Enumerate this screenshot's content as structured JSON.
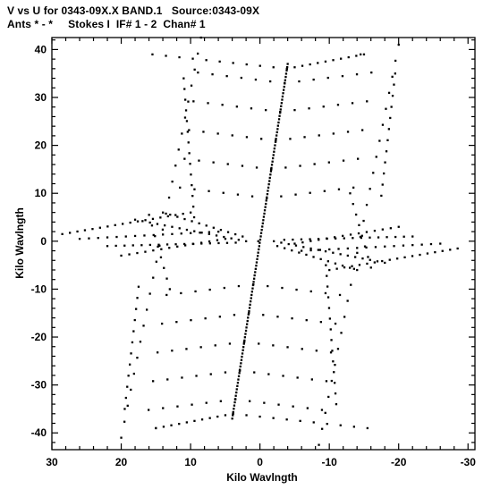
{
  "header": {
    "line1": "V vs U for 0343-09X.X BAND.1   Source:0343-09X",
    "line2": "Ants * - *     Stokes I  IF# 1 - 2  Chan# 1"
  },
  "chart_data": {
    "type": "scatter",
    "title": "V vs U for 0343-09X.X BAND.1   Source:0343-09X",
    "subtitle": "Ants * - *     Stokes I  IF# 1 - 2  Chan# 1",
    "xlabel": "Kilo Wavlngth",
    "ylabel": "Kilo Wavlngth",
    "xlim": [
      30,
      -31
    ],
    "ylim": [
      -43.5,
      42.5
    ],
    "x_inverted": true,
    "x_ticks": [
      30,
      20,
      10,
      0,
      -10,
      -20,
      -30
    ],
    "x_tick_labels": [
      "30",
      "20",
      "10",
      "0",
      "-10",
      "-20",
      "-30"
    ],
    "y_ticks": [
      40,
      30,
      20,
      10,
      0,
      -10,
      -20,
      -30,
      -40
    ],
    "y_tick_labels": [
      "40",
      "30",
      "20",
      "10",
      "0",
      "-10",
      "-20",
      "-30",
      "-40"
    ],
    "grid": false,
    "marker_color": "#000000",
    "baseline_tracks": [
      {
        "u_start": 4.0,
        "v_start": -37.0,
        "u_end": -4.0,
        "v_end": 37.0,
        "n": 110
      },
      {
        "u_start": 20.0,
        "v_start": -41.0,
        "u_end": 8.5,
        "v_end": 42.5,
        "n": 26
      },
      {
        "u_start": -20.0,
        "v_start": 41.0,
        "u_end": -8.5,
        "v_end": -42.5,
        "n": 26
      },
      {
        "u_start": 15.0,
        "v_start": -39.0,
        "u_end": -14.5,
        "v_end": 39.0,
        "n": 3
      },
      {
        "u_start": 28.5,
        "v_start": 1.5,
        "u_end": 10.0,
        "v_end": 6.0,
        "n": 18
      },
      {
        "u_start": -28.5,
        "v_start": -1.5,
        "u_end": -10.0,
        "v_end": -6.0,
        "n": 18
      },
      {
        "u_start": 26.0,
        "v_start": 0.5,
        "u_end": 6.0,
        "v_end": 2.0,
        "n": 16
      },
      {
        "u_start": -26.0,
        "v_start": -0.5,
        "u_end": -6.0,
        "v_end": -2.0,
        "n": 16
      },
      {
        "u_start": 18.0,
        "v_start": 4.5,
        "u_end": 2.0,
        "v_end": 0.0,
        "n": 16
      },
      {
        "u_start": -18.0,
        "v_start": -4.5,
        "u_end": -2.0,
        "v_end": 0.0,
        "n": 16
      },
      {
        "u_start": 22.0,
        "v_start": -1.0,
        "u_end": 3.5,
        "v_end": -0.3,
        "n": 16
      },
      {
        "u_start": -22.0,
        "v_start": 1.0,
        "u_end": -3.5,
        "v_end": 0.3,
        "n": 16
      },
      {
        "u_start": 14.0,
        "v_start": 6.0,
        "u_end": 2.5,
        "v_end": 1.0,
        "n": 12
      },
      {
        "u_start": -14.0,
        "v_start": -6.0,
        "u_end": -2.5,
        "v_end": -1.0,
        "n": 12
      },
      {
        "u_start": 20.0,
        "v_start": -3.0,
        "u_end": 5.0,
        "v_end": 0.5,
        "n": 14
      },
      {
        "u_start": -20.0,
        "v_start": 3.0,
        "u_end": -5.0,
        "v_end": -0.5,
        "n": 14
      },
      {
        "u_start": 16.0,
        "v_start": 5.5,
        "u_end": 13.0,
        "v_end": -10.0,
        "n": 8
      },
      {
        "u_start": -16.0,
        "v_start": -5.5,
        "u_end": -13.0,
        "v_end": 10.0,
        "n": 8
      },
      {
        "u_start": 17.5,
        "v_start": -9.5,
        "u_end": 19.5,
        "v_end": -35.0,
        "n": 12
      },
      {
        "u_start": -17.5,
        "v_start": 9.5,
        "u_end": -19.5,
        "v_end": 35.0,
        "n": 12
      },
      {
        "u_start": 11.0,
        "v_start": 34.0,
        "u_end": 9.5,
        "v_end": 5.0,
        "n": 14
      },
      {
        "u_start": -11.0,
        "v_start": -34.0,
        "u_end": -9.5,
        "v_end": -5.0,
        "n": 14
      }
    ],
    "chevrons": {
      "v_levels": [
        33,
        27,
        21,
        15,
        9,
        -9,
        -15,
        -21,
        -27,
        -33
      ],
      "u_extent": 12.5,
      "v_drop": 2.2,
      "points_per_arm": 7
    },
    "outer_chevrons": [
      {
        "u_left": 15.5,
        "v_left": 39.0,
        "u_right": -15.0,
        "v_right": 39.0,
        "v_center": 36.0,
        "n": 22
      },
      {
        "u_left": 15.0,
        "v_left": -39.0,
        "u_right": -15.5,
        "v_right": -39.0,
        "v_center": -36.0,
        "n": 22
      }
    ]
  }
}
